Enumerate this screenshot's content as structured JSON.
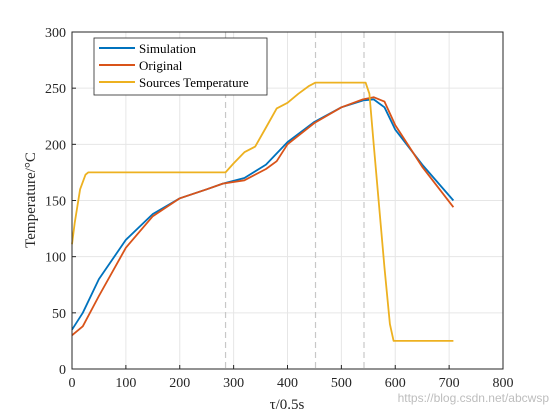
{
  "chart_data": {
    "type": "line",
    "xlabel": "τ/0.5s",
    "ylabel": "Temperature/°C",
    "xlim": [
      0,
      800
    ],
    "ylim": [
      0,
      300
    ],
    "xticks": [
      0,
      100,
      200,
      300,
      400,
      500,
      600,
      700,
      800
    ],
    "yticks": [
      0,
      50,
      100,
      150,
      200,
      250,
      300
    ],
    "grid": true,
    "legend_position": "top-left",
    "vlines": [
      285,
      452,
      542
    ],
    "series": [
      {
        "name": "Simulation",
        "color": "#0072BD",
        "points": [
          [
            0,
            35
          ],
          [
            20,
            50
          ],
          [
            50,
            80
          ],
          [
            100,
            115
          ],
          [
            150,
            138
          ],
          [
            200,
            152
          ],
          [
            250,
            160
          ],
          [
            280,
            165
          ],
          [
            320,
            170
          ],
          [
            360,
            182
          ],
          [
            400,
            202
          ],
          [
            450,
            220
          ],
          [
            500,
            233
          ],
          [
            540,
            239
          ],
          [
            560,
            240
          ],
          [
            580,
            233
          ],
          [
            600,
            213
          ],
          [
            650,
            182
          ],
          [
            708,
            150
          ]
        ]
      },
      {
        "name": "Original",
        "color": "#D95319",
        "points": [
          [
            0,
            30
          ],
          [
            20,
            38
          ],
          [
            50,
            65
          ],
          [
            100,
            108
          ],
          [
            150,
            136
          ],
          [
            200,
            152
          ],
          [
            250,
            160
          ],
          [
            280,
            165
          ],
          [
            320,
            168
          ],
          [
            360,
            178
          ],
          [
            380,
            185
          ],
          [
            400,
            200
          ],
          [
            450,
            219
          ],
          [
            500,
            233
          ],
          [
            540,
            240
          ],
          [
            560,
            242
          ],
          [
            580,
            238
          ],
          [
            600,
            217
          ],
          [
            650,
            180
          ],
          [
            708,
            144
          ]
        ]
      },
      {
        "name": "Sources Temperature",
        "color": "#EDB120",
        "points": [
          [
            0,
            111
          ],
          [
            5,
            130
          ],
          [
            15,
            160
          ],
          [
            25,
            173
          ],
          [
            30,
            175
          ],
          [
            100,
            175
          ],
          [
            200,
            175
          ],
          [
            270,
            175
          ],
          [
            285,
            175
          ],
          [
            300,
            183
          ],
          [
            320,
            193
          ],
          [
            340,
            198
          ],
          [
            360,
            215
          ],
          [
            380,
            232
          ],
          [
            400,
            237
          ],
          [
            420,
            245
          ],
          [
            440,
            252
          ],
          [
            452,
            255
          ],
          [
            500,
            255
          ],
          [
            545,
            255
          ],
          [
            552,
            245
          ],
          [
            560,
            200
          ],
          [
            570,
            145
          ],
          [
            580,
            90
          ],
          [
            590,
            40
          ],
          [
            597,
            25
          ],
          [
            620,
            25
          ],
          [
            708,
            25
          ]
        ]
      }
    ]
  },
  "watermark": "https://blog.csdn.net/abcwsp"
}
